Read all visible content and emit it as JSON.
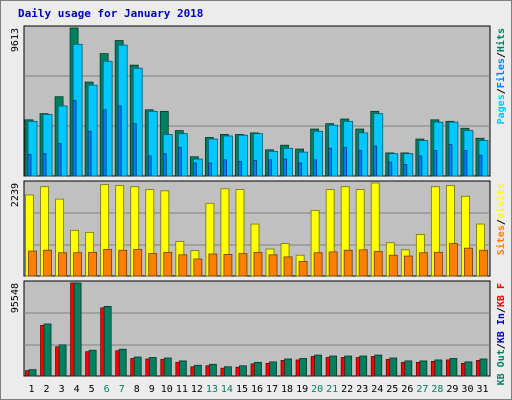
{
  "title": "Daily usage for January 2018",
  "colors": {
    "hits": "#008060",
    "files": "#0080ff",
    "pages": "#00c8ff",
    "visits": "#ffff00",
    "sites": "#ff8000",
    "kb_in": "#0000c0",
    "kb_out": "#008060",
    "kb_f": "#ff0000",
    "weekend": "#008060",
    "weekday": "#000000",
    "plot_bg": "#c0c0c0"
  },
  "chart_data": [
    {
      "type": "bar",
      "name": "hits-files-pages",
      "ymax_label": "9613",
      "ylim": [
        0,
        9613
      ],
      "legend_labels": [
        "Hits",
        "/",
        "Files",
        "/",
        "Pages"
      ],
      "legend_colors": [
        "#008060",
        "#000000",
        "#0080ff",
        "#000000",
        "#00c8ff"
      ],
      "categories": [
        "1",
        "2",
        "3",
        "4",
        "5",
        "6",
        "7",
        "8",
        "9",
        "10",
        "11",
        "12",
        "13",
        "14",
        "15",
        "16",
        "17",
        "18",
        "19",
        "20",
        "21",
        "22",
        "23",
        "24",
        "25",
        "26",
        "27",
        "28",
        "29",
        "30",
        "31"
      ],
      "series": [
        {
          "name": "Hits",
          "values": [
            3650,
            4050,
            5150,
            9613,
            6100,
            7950,
            8800,
            7200,
            4300,
            4200,
            2950,
            1250,
            2500,
            2700,
            2700,
            2800,
            1700,
            2000,
            1750,
            3050,
            3400,
            3700,
            3050,
            4200,
            1500,
            1500,
            2400,
            3650,
            3550,
            3100,
            2450
          ]
        },
        {
          "name": "Files",
          "values": [
            1400,
            1450,
            2100,
            4900,
            2900,
            4300,
            4550,
            3400,
            1300,
            1450,
            1850,
            850,
            850,
            1050,
            950,
            1000,
            1050,
            1100,
            850,
            1050,
            1800,
            1850,
            1650,
            1950,
            900,
            750,
            1300,
            1650,
            2050,
            1650,
            1350
          ]
        },
        {
          "name": "Pages",
          "values": [
            3550,
            4000,
            4550,
            8550,
            5900,
            7450,
            8500,
            7000,
            4200,
            2700,
            2750,
            1100,
            2400,
            2600,
            2650,
            2750,
            1600,
            1800,
            1550,
            2900,
            3300,
            3550,
            2800,
            4050,
            1450,
            1450,
            2300,
            3500,
            3500,
            2950,
            2300
          ]
        }
      ]
    },
    {
      "type": "bar",
      "name": "visits-sites",
      "ymax_label": "2239",
      "ylim": [
        0,
        2239
      ],
      "legend_labels": [
        "Visits",
        "/",
        "Sites"
      ],
      "legend_colors": [
        "#ffff00",
        "#000000",
        "#ff8000"
      ],
      "categories": [
        "1",
        "2",
        "3",
        "4",
        "5",
        "6",
        "7",
        "8",
        "9",
        "10",
        "11",
        "12",
        "13",
        "14",
        "15",
        "16",
        "17",
        "18",
        "19",
        "20",
        "21",
        "22",
        "23",
        "24",
        "25",
        "26",
        "27",
        "28",
        "29",
        "30",
        "31"
      ],
      "series": [
        {
          "name": "Visits",
          "values": [
            1950,
            2150,
            1850,
            1100,
            1050,
            2200,
            2180,
            2150,
            2080,
            2050,
            830,
            610,
            1750,
            2100,
            2080,
            1250,
            650,
            780,
            500,
            1580,
            2080,
            2150,
            2080,
            2250,
            800,
            630,
            1000,
            2150,
            2180,
            1920,
            1250
          ]
        },
        {
          "name": "Sites",
          "values": [
            600,
            620,
            560,
            560,
            570,
            640,
            620,
            640,
            540,
            570,
            510,
            410,
            530,
            520,
            540,
            570,
            510,
            460,
            350,
            560,
            580,
            620,
            630,
            590,
            500,
            480,
            560,
            570,
            780,
            670,
            620
          ]
        }
      ]
    },
    {
      "type": "bar",
      "name": "kbf-kbin-kbout",
      "ymax_label": "95548",
      "ylim": [
        0,
        95548
      ],
      "legend_labels": [
        "KB F",
        "/",
        "KB In",
        "/",
        "KB Out"
      ],
      "legend_colors": [
        "#ff0000",
        "#000000",
        "#0000c0",
        "#000000",
        "#008060"
      ],
      "categories": [
        "1",
        "2",
        "3",
        "4",
        "5",
        "6",
        "7",
        "8",
        "9",
        "10",
        "11",
        "12",
        "13",
        "14",
        "15",
        "16",
        "17",
        "18",
        "19",
        "20",
        "21",
        "22",
        "23",
        "24",
        "25",
        "26",
        "27",
        "28",
        "29",
        "30",
        "31"
      ],
      "series": [
        {
          "name": "KB F",
          "values": [
            5500,
            52000,
            30000,
            95548,
            25000,
            70000,
            26000,
            18000,
            17500,
            17000,
            14000,
            9500,
            10500,
            8000,
            9000,
            12500,
            13000,
            16000,
            16500,
            20000,
            19000,
            19000,
            19000,
            20000,
            17000,
            14000,
            14000,
            15000,
            16500,
            13000,
            16000
          ]
        },
        {
          "name": "KB Out",
          "values": [
            6500,
            53500,
            32000,
            96000,
            26500,
            71500,
            27500,
            19500,
            19000,
            18500,
            15500,
            11000,
            12000,
            9500,
            10500,
            14000,
            14500,
            17500,
            18000,
            21500,
            20500,
            20500,
            20500,
            21500,
            18500,
            15500,
            15500,
            16500,
            18000,
            14500,
            17500
          ]
        }
      ]
    }
  ]
}
